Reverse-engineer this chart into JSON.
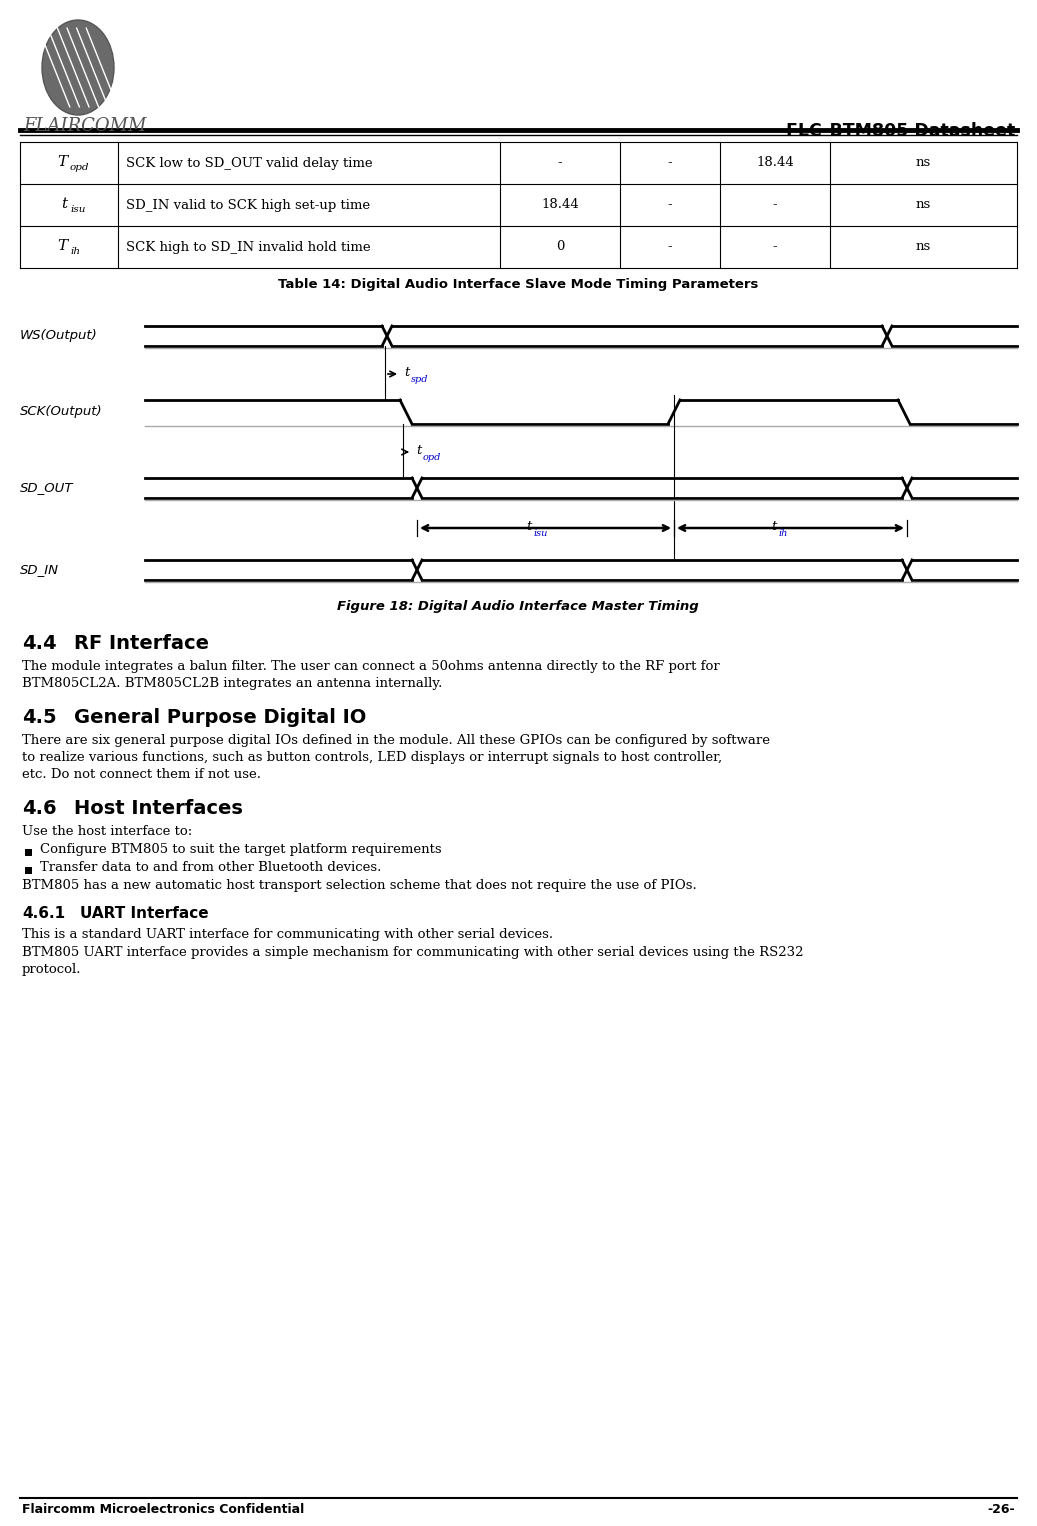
{
  "title_right": "FLC-BTM805 Datasheet",
  "logo_text": "FLAIRCOMM",
  "table_rows": [
    {
      "symbol": "T",
      "sub": "opd",
      "description": "SCK low to SD_OUT valid delay time",
      "min": "-",
      "typ": "-",
      "max": "18.44",
      "unit": "ns"
    },
    {
      "symbol": "t",
      "sub": "isu",
      "description": "SD_IN valid to SCK high set-up time",
      "min": "18.44",
      "typ": "-",
      "max": "-",
      "unit": "ns"
    },
    {
      "symbol": "T",
      "sub": "ih",
      "description": "SCK high to SD_IN invalid hold time",
      "min": "0",
      "typ": "-",
      "max": "-",
      "unit": "ns"
    }
  ],
  "table_caption": "Table 14: Digital Audio Interface Slave Mode Timing Parameters",
  "figure_caption": "Figure 18: Digital Audio Interface Master Timing",
  "section_44_title_num": "4.4",
  "section_44_title_text": "RF Interface",
  "section_44_text": "The module integrates a balun filter. The user can connect a 50ohms antenna directly to the RF port for BTM805CL2A.  BTM805CL2B integrates an antenna internally.",
  "section_45_title_num": "4.5",
  "section_45_title_text": "General Purpose Digital IO",
  "section_45_text": "There are six general purpose digital IOs defined in the module. All these GPIOs can be configured by software to realize various functions, such as button controls, LED displays or interrupt signals to host controller, etc. Do not connect them if not use.",
  "section_46_title_num": "4.6",
  "section_46_title_text": "Host Interfaces",
  "section_46_intro": "Use the host interface to:",
  "section_46_bullets": [
    "Configure BTM805 to suit the target platform requirements",
    "Transfer data to and from other Bluetooth devices."
  ],
  "section_46_text2": "BTM805 has a new automatic host transport selection scheme that does not require the use of PIOs.",
  "section_461_title_num": "4.6.1",
  "section_461_title_text": "UART Interface",
  "section_461_text1": "This is a standard UART interface for communicating with other serial devices.",
  "section_461_text2": "BTM805 UART interface provides a simple mechanism for communicating with other serial devices using the RS232 protocol.",
  "footer_left": "Flaircomm Microelectronics Confidential",
  "footer_right": "-26-",
  "bg_color": "#ffffff"
}
